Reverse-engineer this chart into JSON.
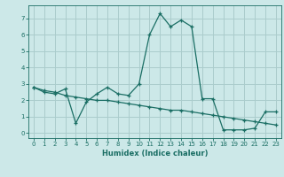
{
  "xlabel": "Humidex (Indice chaleur)",
  "bg_color": "#cce8e8",
  "grid_color": "#aacccc",
  "line_color": "#1a6e64",
  "xlim": [
    -0.5,
    23.5
  ],
  "ylim": [
    -0.3,
    7.8
  ],
  "xticks": [
    0,
    1,
    2,
    3,
    4,
    5,
    6,
    7,
    8,
    9,
    10,
    11,
    12,
    13,
    14,
    15,
    16,
    17,
    18,
    19,
    20,
    21,
    22,
    23
  ],
  "yticks": [
    0,
    1,
    2,
    3,
    4,
    5,
    6,
    7
  ],
  "line1_x": [
    0,
    1,
    2,
    3,
    4,
    5,
    6,
    7,
    8,
    9,
    10,
    11,
    12,
    13,
    14,
    15,
    16,
    17,
    18,
    19,
    20,
    21,
    22,
    23
  ],
  "line1_y": [
    2.8,
    2.5,
    2.4,
    2.7,
    0.6,
    1.9,
    2.4,
    2.8,
    2.4,
    2.3,
    3.0,
    6.0,
    7.3,
    6.5,
    6.9,
    6.5,
    2.1,
    2.1,
    0.2,
    0.2,
    0.2,
    0.3,
    1.3,
    1.3
  ],
  "line2_x": [
    0,
    1,
    2,
    3,
    4,
    5,
    6,
    7,
    8,
    9,
    10,
    11,
    12,
    13,
    14,
    15,
    16,
    17,
    18,
    19,
    20,
    21,
    22,
    23
  ],
  "line2_y": [
    2.8,
    2.6,
    2.5,
    2.3,
    2.2,
    2.1,
    2.0,
    2.0,
    1.9,
    1.8,
    1.7,
    1.6,
    1.5,
    1.4,
    1.4,
    1.3,
    1.2,
    1.1,
    1.0,
    0.9,
    0.8,
    0.7,
    0.6,
    0.5
  ]
}
